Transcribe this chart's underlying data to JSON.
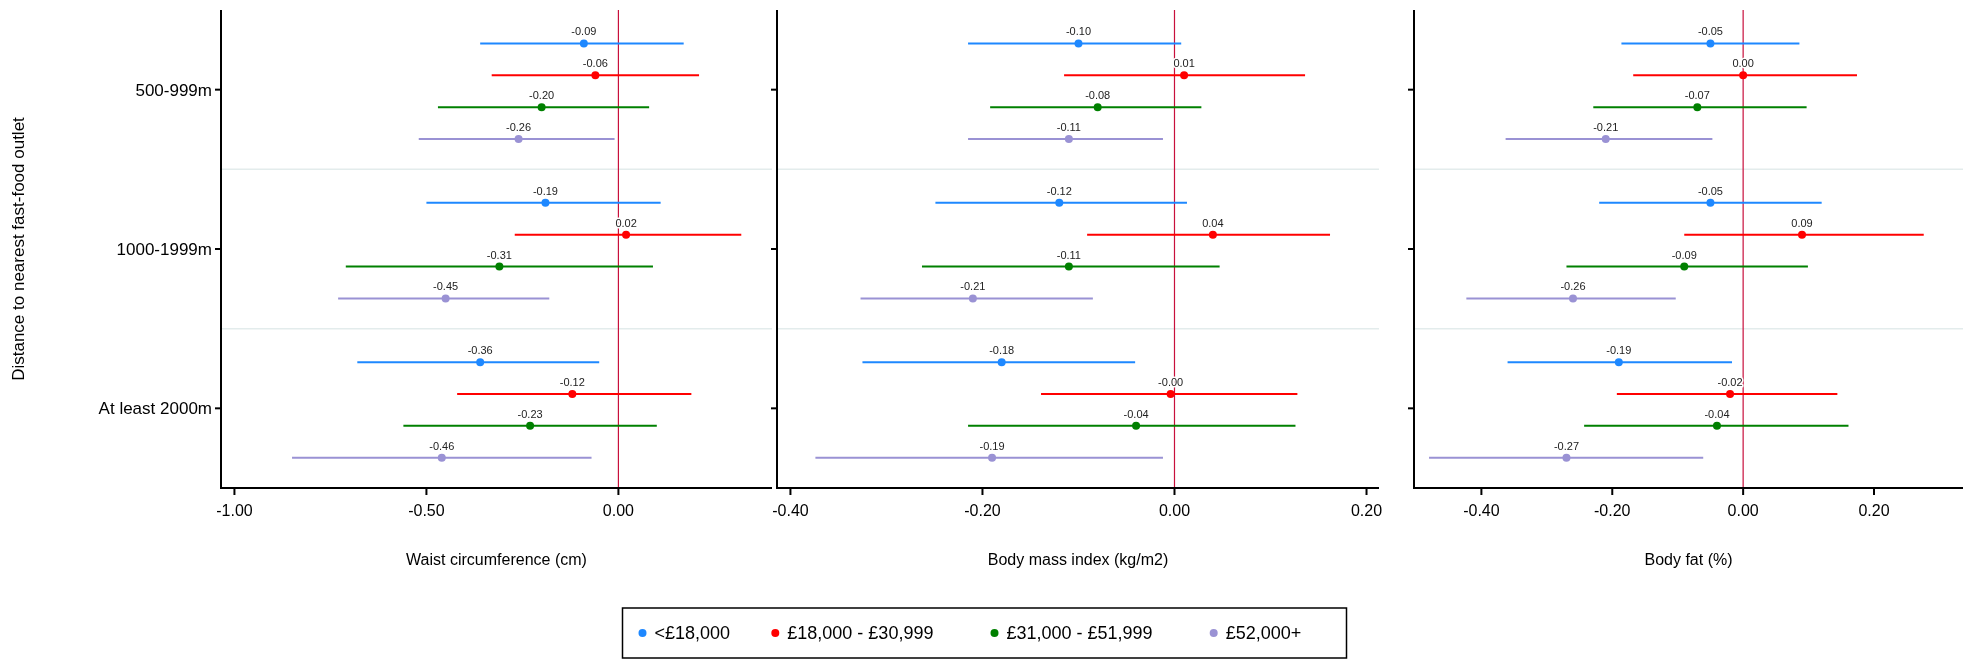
{
  "chart_data": [
    {
      "type": "scatter",
      "orientation": "horizontal",
      "ylabel": "Distance to nearest fast-food outlet",
      "xlabel": "Waist circumference (cm)",
      "categories": [
        "500-999m",
        "1000-1999m",
        "At least 2000m"
      ],
      "xlim": [
        -1.035,
        0.4
      ],
      "xticks": [
        {
          "value": -1,
          "label": "-1.00"
        },
        {
          "value": -0.5,
          "label": "-0.50"
        },
        {
          "value": 0,
          "label": "0.00"
        }
      ],
      "ref_lines": [
        {
          "axis": "x",
          "value": 0,
          "color": "#c8103c"
        }
      ],
      "legend": "bottom",
      "series": [
        {
          "name": "<£18,000",
          "color": "#1e88ff",
          "values": [
            -0.09,
            -0.19,
            -0.36
          ],
          "value_labels": [
            "-0.09",
            "-0.19",
            "-0.36"
          ],
          "errors": [
            [
              -0.36,
              0.17
            ],
            [
              -0.5,
              0.11
            ],
            [
              -0.68,
              -0.05
            ]
          ]
        },
        {
          "name": "£18,000 - £30,999",
          "color": "#ff0000",
          "values": [
            -0.06,
            0.02,
            -0.12
          ],
          "value_labels": [
            "-0.06",
            "0.02",
            "-0.12"
          ],
          "errors": [
            [
              -0.33,
              0.21
            ],
            [
              -0.27,
              0.32
            ],
            [
              -0.42,
              0.19
            ]
          ]
        },
        {
          "name": "£31,000 - £51,999",
          "color": "#008000",
          "values": [
            -0.2,
            -0.31,
            -0.23
          ],
          "value_labels": [
            "-0.20",
            "-0.31",
            "-0.23"
          ],
          "errors": [
            [
              -0.47,
              0.08
            ],
            [
              -0.71,
              0.09
            ],
            [
              -0.56,
              0.1
            ]
          ]
        },
        {
          "name": "£52,000+",
          "color": "#9a92d4",
          "values": [
            -0.26,
            -0.45,
            -0.46
          ],
          "value_labels": [
            "-0.26",
            "-0.45",
            "-0.46"
          ],
          "errors": [
            [
              -0.52,
              -0.01
            ],
            [
              -0.73,
              -0.18
            ],
            [
              -0.85,
              -0.07
            ]
          ]
        }
      ]
    },
    {
      "type": "scatter",
      "orientation": "horizontal",
      "xlabel": "Body mass index (kg/m2)",
      "categories": [
        null,
        null,
        null
      ],
      "xlim": [
        -0.414,
        0.213
      ],
      "xticks": [
        {
          "value": -0.4,
          "label": "-0.40"
        },
        {
          "value": -0.2,
          "label": "-0.20"
        },
        {
          "value": 0,
          "label": "0.00"
        },
        {
          "value": 0.2,
          "label": "0.20"
        }
      ],
      "ref_lines": [
        {
          "axis": "x",
          "value": 0,
          "color": "#c8103c"
        }
      ],
      "series": [
        {
          "color": "#1e88ff",
          "values": [
            -0.1,
            -0.12,
            -0.18
          ],
          "value_labels": [
            "-0.10",
            "-0.12",
            "-0.18"
          ],
          "errors": [
            [
              -0.215,
              0.007
            ],
            [
              -0.249,
              0.013
            ],
            [
              -0.325,
              -0.041
            ]
          ]
        },
        {
          "color": "#ff0000",
          "values": [
            0.01,
            0.04,
            -0.004
          ],
          "value_labels": [
            "0.01",
            "0.04",
            "-0.00"
          ],
          "errors": [
            [
              -0.115,
              0.136
            ],
            [
              -0.091,
              0.162
            ],
            [
              -0.139,
              0.128
            ]
          ]
        },
        {
          "color": "#008000",
          "values": [
            -0.08,
            -0.11,
            -0.04
          ],
          "value_labels": [
            "-0.08",
            "-0.11",
            "-0.04"
          ],
          "errors": [
            [
              -0.192,
              0.028
            ],
            [
              -0.263,
              0.047
            ],
            [
              -0.215,
              0.126
            ]
          ]
        },
        {
          "color": "#9a92d4",
          "values": [
            -0.11,
            -0.21,
            -0.19
          ],
          "value_labels": [
            "-0.11",
            "-0.21",
            "-0.19"
          ],
          "errors": [
            [
              -0.215,
              -0.012
            ],
            [
              -0.327,
              -0.085
            ],
            [
              -0.374,
              -0.012
            ]
          ]
        }
      ]
    },
    {
      "type": "scatter",
      "orientation": "horizontal",
      "xlabel": "Body fat (%)",
      "categories": [
        null,
        null,
        null
      ],
      "xlim": [
        -0.503,
        0.336
      ],
      "xticks": [
        {
          "value": -0.4,
          "label": "-0.40"
        },
        {
          "value": -0.2,
          "label": "-0.20"
        },
        {
          "value": 0,
          "label": "0.00"
        },
        {
          "value": 0.2,
          "label": "0.20"
        }
      ],
      "ref_lines": [
        {
          "axis": "x",
          "value": 0,
          "color": "#c8103c"
        }
      ],
      "series": [
        {
          "color": "#1e88ff",
          "values": [
            -0.05,
            -0.05,
            -0.19
          ],
          "value_labels": [
            "-0.05",
            "-0.05",
            "-0.19"
          ],
          "errors": [
            [
              -0.186,
              0.086
            ],
            [
              -0.22,
              0.12
            ],
            [
              -0.36,
              -0.017
            ]
          ]
        },
        {
          "color": "#ff0000",
          "values": [
            0,
            0.09,
            -0.02
          ],
          "value_labels": [
            "0.00",
            "0.09",
            "-0.02"
          ],
          "errors": [
            [
              -0.168,
              0.174
            ],
            [
              -0.09,
              0.276
            ],
            [
              -0.193,
              0.144
            ]
          ]
        },
        {
          "color": "#008000",
          "values": [
            -0.07,
            -0.09,
            -0.04
          ],
          "value_labels": [
            "-0.07",
            "-0.09",
            "-0.04"
          ],
          "errors": [
            [
              -0.229,
              0.097
            ],
            [
              -0.27,
              0.099
            ],
            [
              -0.243,
              0.161
            ]
          ]
        },
        {
          "color": "#9a92d4",
          "values": [
            -0.21,
            -0.26,
            -0.27
          ],
          "value_labels": [
            "-0.21",
            "-0.26",
            "-0.27"
          ],
          "errors": [
            [
              -0.363,
              -0.047
            ],
            [
              -0.423,
              -0.103
            ],
            [
              -0.48,
              -0.061
            ]
          ]
        }
      ]
    }
  ]
}
